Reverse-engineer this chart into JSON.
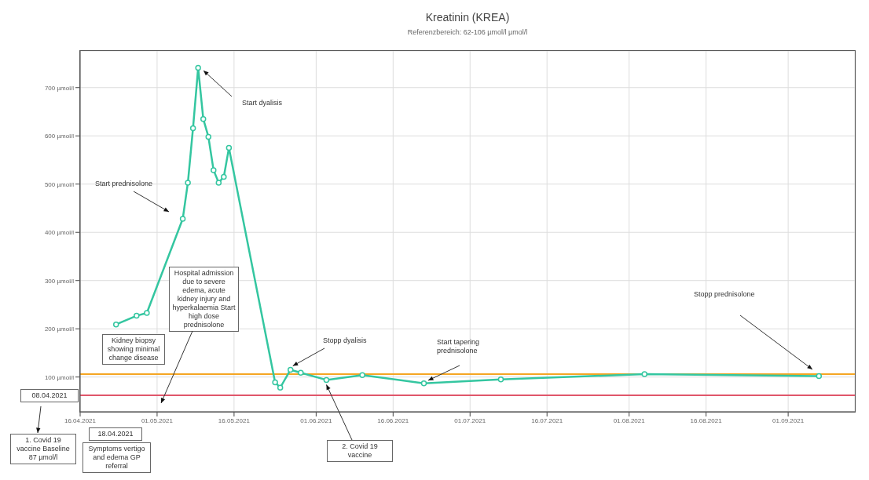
{
  "chart_data": {
    "type": "line",
    "title": "Kreatinin (KREA)",
    "subtitle": "Referenzbereich: 62-106 µmol/l µmol/l",
    "x": [
      "2021-04-23",
      "2021-04-27",
      "2021-04-29",
      "2021-05-06",
      "2021-05-07",
      "2021-05-08",
      "2021-05-09",
      "2021-05-10",
      "2021-05-11",
      "2021-05-12",
      "2021-05-13",
      "2021-05-14",
      "2021-05-15",
      "2021-05-24",
      "2021-05-25",
      "2021-05-27",
      "2021-05-29",
      "2021-06-03",
      "2021-06-10",
      "2021-06-22",
      "2021-07-07",
      "2021-08-04",
      "2021-09-07"
    ],
    "series": [
      {
        "color": "#34c6a0",
        "values": [
          209,
          227,
          233,
          428,
          503,
          616,
          741,
          635,
          598,
          529,
          503,
          515,
          575,
          89,
          78,
          115,
          109,
          94,
          104,
          87,
          95,
          106,
          102
        ]
      }
    ],
    "xlim": [
      "2021-04-16",
      "2021-09-14"
    ],
    "xticks": [
      {
        "value": "2021-04-16",
        "label": "16.04.2021"
      },
      {
        "value": "2021-05-01",
        "label": "01.05.2021"
      },
      {
        "value": "2021-05-16",
        "label": "16.05.2021"
      },
      {
        "value": "2021-06-01",
        "label": "01.06.2021"
      },
      {
        "value": "2021-06-16",
        "label": "16.06.2021"
      },
      {
        "value": "2021-07-01",
        "label": "01.07.2021"
      },
      {
        "value": "2021-07-16",
        "label": "16.07.2021"
      },
      {
        "value": "2021-08-01",
        "label": "01.08.2021"
      },
      {
        "value": "2021-08-16",
        "label": "16.08.2021"
      },
      {
        "value": "2021-09-01",
        "label": "01.09.2021"
      }
    ],
    "ylim": [
      28,
      776
    ],
    "yticks": [
      {
        "value": 100,
        "label": "100 µmol/l"
      },
      {
        "value": 200,
        "label": "200 µmol/l"
      },
      {
        "value": 300,
        "label": "300 µmol/l"
      },
      {
        "value": 400,
        "label": "400 µmol/l"
      },
      {
        "value": 500,
        "label": "500 µmol/l"
      },
      {
        "value": 600,
        "label": "600 µmol/l"
      },
      {
        "value": 700,
        "label": "700 µmol/l"
      }
    ],
    "ref_lines": [
      {
        "axis": "y",
        "value": 106,
        "color": "#f5a623"
      },
      {
        "axis": "y",
        "value": 62,
        "color": "#e0566a"
      }
    ],
    "grid": true,
    "marker": "circle",
    "line_style": "solid",
    "annotations": [
      "Start dyalisis",
      "Start prednisolone",
      {
        "text": "Stopp dyalisis",
        "x": "2021-05-27",
        "y": 115
      },
      {
        "text": "2. Covid 19 vaccine",
        "x": "2021-06-03",
        "y": 94
      },
      "Start tapering prednisolone",
      "Stopp prednisolone",
      "Kidney biopsy showing minimal change disease",
      "Hospital admission due to severe edema, acute kidney injury and hyperkalaemia Start high dose prednisolone",
      "08.04.2021",
      "1. Covid 19 vaccine Baseline 87 µmol/l",
      "18.04.2021",
      "Symptoms vertigo and edema GP referral"
    ]
  }
}
